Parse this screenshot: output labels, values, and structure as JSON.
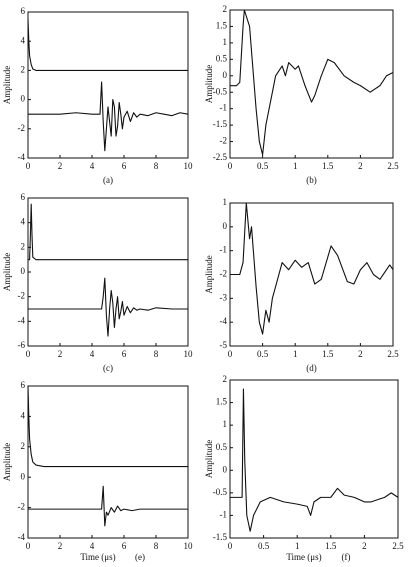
{
  "chart_data": [
    {
      "type": "line",
      "caption": "(a)",
      "ylabel": "Amplitude",
      "x": [
        0,
        0.05,
        0.1,
        0.2,
        0.3,
        0.5,
        1,
        2,
        3,
        4,
        4.5,
        4.6,
        4.7,
        4.8,
        4.9,
        5.0,
        5.1,
        5.2,
        5.3,
        5.4,
        5.5,
        5.6,
        5.7,
        5.8,
        5.9,
        6.0,
        6.2,
        6.4,
        6.6,
        6.8,
        7,
        7.5,
        8,
        8.5,
        9,
        9.5,
        10
      ],
      "series": [
        {
          "color": "#111111",
          "values": [
            5.5,
            4,
            3,
            2.4,
            2.1,
            2,
            2,
            2,
            2,
            2,
            2,
            2,
            2,
            2,
            2,
            2,
            2,
            2,
            2,
            2,
            2,
            2,
            2,
            2,
            2,
            2,
            2,
            2,
            2,
            2,
            2,
            2,
            2,
            2,
            2,
            2,
            2
          ]
        },
        {
          "color": "#111111",
          "values": [
            -1,
            -1,
            -1,
            -1,
            -1,
            -1,
            -1,
            -1,
            -0.9,
            -1,
            -1,
            1.2,
            -1.5,
            -3.5,
            -2,
            -0.5,
            -1.5,
            -2.5,
            0,
            -0.5,
            -2.5,
            -1.8,
            -0.2,
            -1,
            -2,
            -1.2,
            -0.8,
            -1.5,
            -0.9,
            -1.2,
            -1,
            -1.1,
            -0.9,
            -1,
            -1.1,
            -0.9,
            -1
          ]
        }
      ],
      "xlim": [
        0,
        10
      ],
      "xticks": [
        0,
        2,
        4,
        6,
        8,
        10
      ],
      "ylim": [
        -4,
        6
      ],
      "yticks": [
        -4,
        -2,
        0,
        2,
        4,
        6
      ]
    },
    {
      "type": "line",
      "caption": "(b)",
      "ylabel": "Amplitude",
      "x": [
        0,
        0.1,
        0.15,
        0.2,
        0.22,
        0.3,
        0.4,
        0.45,
        0.5,
        0.55,
        0.65,
        0.7,
        0.8,
        0.85,
        0.9,
        1.0,
        1.05,
        1.15,
        1.25,
        1.3,
        1.4,
        1.5,
        1.6,
        1.75,
        1.9,
        2.0,
        2.15,
        2.3,
        2.4,
        2.5
      ],
      "series": [
        {
          "color": "#111111",
          "values": [
            -0.3,
            -0.3,
            -0.2,
            1.5,
            2,
            1.5,
            -1,
            -2,
            -2.4,
            -1.5,
            -0.5,
            0,
            0.3,
            0,
            0.4,
            0.2,
            0.3,
            -0.3,
            -0.8,
            -0.6,
            0,
            0.5,
            0.4,
            0,
            -0.2,
            -0.3,
            -0.5,
            -0.3,
            0,
            0.1
          ]
        }
      ],
      "xlim": [
        0,
        2.5
      ],
      "xticks": [
        0,
        0.5,
        1,
        1.5,
        2,
        2.5
      ],
      "ylim": [
        -2.5,
        2
      ],
      "yticks": [
        -2.5,
        -2,
        -1.5,
        -1,
        -0.5,
        0,
        0.5,
        1,
        1.5,
        2
      ]
    },
    {
      "type": "line",
      "caption": "(c)",
      "ylabel": "Amplitude",
      "x": [
        0,
        0.1,
        0.15,
        0.2,
        0.25,
        0.3,
        0.5,
        1,
        2,
        3,
        4,
        4.6,
        4.7,
        4.8,
        4.9,
        5.0,
        5.1,
        5.2,
        5.3,
        5.4,
        5.5,
        5.6,
        5.7,
        5.8,
        5.9,
        6.0,
        6.2,
        6.4,
        6.6,
        6.8,
        7,
        7.5,
        8,
        9,
        10
      ],
      "series": [
        {
          "color": "#111111",
          "values": [
            1,
            1,
            3,
            5.5,
            3,
            1.2,
            1,
            1,
            1,
            1,
            1,
            1,
            1,
            1,
            1,
            1,
            1,
            1,
            1,
            1,
            1,
            1,
            1,
            1,
            1,
            1,
            1,
            1,
            1,
            1,
            1,
            1,
            1,
            1,
            1
          ]
        },
        {
          "color": "#111111",
          "values": [
            -3,
            -3,
            -3,
            -3,
            -3,
            -3,
            -3,
            -3,
            -3,
            -3,
            -3,
            -3,
            -2,
            -0.5,
            -3.5,
            -5.2,
            -3,
            -1.5,
            -2.5,
            -4.5,
            -3,
            -2,
            -3.8,
            -3.2,
            -2.4,
            -3.5,
            -2.8,
            -3.3,
            -2.9,
            -3.1,
            -3,
            -3.1,
            -2.9,
            -3,
            -3
          ]
        }
      ],
      "xlim": [
        0,
        10
      ],
      "xticks": [
        0,
        2,
        4,
        6,
        8,
        10
      ],
      "ylim": [
        -6,
        6
      ],
      "yticks": [
        -6,
        -4,
        -2,
        0,
        2,
        4,
        6
      ]
    },
    {
      "type": "line",
      "caption": "(d)",
      "ylabel": "Amplitude",
      "x": [
        0,
        0.15,
        0.2,
        0.25,
        0.3,
        0.33,
        0.4,
        0.45,
        0.5,
        0.55,
        0.6,
        0.65,
        0.75,
        0.8,
        0.9,
        1.0,
        1.1,
        1.2,
        1.3,
        1.4,
        1.55,
        1.65,
        1.8,
        1.9,
        2.0,
        2.1,
        2.2,
        2.3,
        2.45,
        2.5
      ],
      "series": [
        {
          "color": "#111111",
          "values": [
            -2,
            -2,
            -1.5,
            1,
            -0.5,
            0,
            -2.5,
            -4,
            -4.5,
            -3.5,
            -4,
            -3,
            -2,
            -1.5,
            -1.8,
            -1.4,
            -1.7,
            -1.5,
            -2.4,
            -2.2,
            -0.8,
            -1.2,
            -2.3,
            -2.4,
            -1.8,
            -1.5,
            -2,
            -2.2,
            -1.6,
            -1.8
          ]
        }
      ],
      "xlim": [
        0,
        2.5
      ],
      "xticks": [
        0,
        0.5,
        1,
        1.5,
        2,
        2.5
      ],
      "ylim": [
        -5,
        1
      ],
      "yticks": [
        -5,
        -4,
        -3,
        -2,
        -1,
        0,
        1
      ]
    },
    {
      "type": "line",
      "caption": "(e)",
      "ylabel": "Amplitude",
      "xlabel": "Time (μs)",
      "x": [
        0,
        0.05,
        0.1,
        0.2,
        0.3,
        0.5,
        1,
        2,
        3,
        4,
        4.6,
        4.7,
        4.8,
        4.9,
        5.0,
        5.2,
        5.4,
        5.6,
        5.8,
        6,
        6.5,
        7,
        8,
        9,
        10
      ],
      "series": [
        {
          "color": "#111111",
          "values": [
            6,
            4,
            2.5,
            1.5,
            1,
            0.8,
            0.7,
            0.7,
            0.7,
            0.7,
            0.7,
            0.7,
            0.7,
            0.7,
            0.7,
            0.7,
            0.7,
            0.7,
            0.7,
            0.7,
            0.7,
            0.7,
            0.7,
            0.7,
            0.7
          ]
        },
        {
          "color": "#111111",
          "values": [
            -2.1,
            -2.1,
            -2.1,
            -2.1,
            -2.1,
            -2.1,
            -2.1,
            -2.1,
            -2.1,
            -2.1,
            -2.1,
            -0.6,
            -3.2,
            -2.3,
            -2.5,
            -2,
            -2.3,
            -1.9,
            -2.2,
            -2.1,
            -2.2,
            -2.1,
            -2.1,
            -2.1,
            -2.1
          ]
        }
      ],
      "xlim": [
        0,
        10
      ],
      "xticks": [
        0,
        2,
        4,
        6,
        8,
        10
      ],
      "ylim": [
        -4,
        6
      ],
      "yticks": [
        -4,
        -2,
        0,
        2,
        4,
        6
      ]
    },
    {
      "type": "line",
      "caption": "(f)",
      "ylabel": "Amplitude",
      "xlabel": "Time (μs)",
      "x": [
        0,
        0.18,
        0.2,
        0.22,
        0.25,
        0.3,
        0.35,
        0.45,
        0.6,
        0.8,
        1.0,
        1.15,
        1.2,
        1.25,
        1.35,
        1.5,
        1.6,
        1.7,
        1.85,
        2.0,
        2.1,
        2.3,
        2.4,
        2.5
      ],
      "series": [
        {
          "color": "#111111",
          "values": [
            -0.6,
            -0.6,
            1.8,
            0.2,
            -1,
            -1.35,
            -1,
            -0.7,
            -0.6,
            -0.7,
            -0.75,
            -0.8,
            -1,
            -0.7,
            -0.6,
            -0.6,
            -0.4,
            -0.55,
            -0.6,
            -0.7,
            -0.7,
            -0.6,
            -0.5,
            -0.6
          ]
        }
      ],
      "xlim": [
        0,
        2.5
      ],
      "xticks": [
        0,
        0.5,
        1,
        1.5,
        2,
        2.5
      ],
      "ylim": [
        -1.5,
        2
      ],
      "yticks": [
        -1.5,
        -1,
        -0.5,
        0,
        0.5,
        1,
        1.5,
        2
      ]
    }
  ]
}
